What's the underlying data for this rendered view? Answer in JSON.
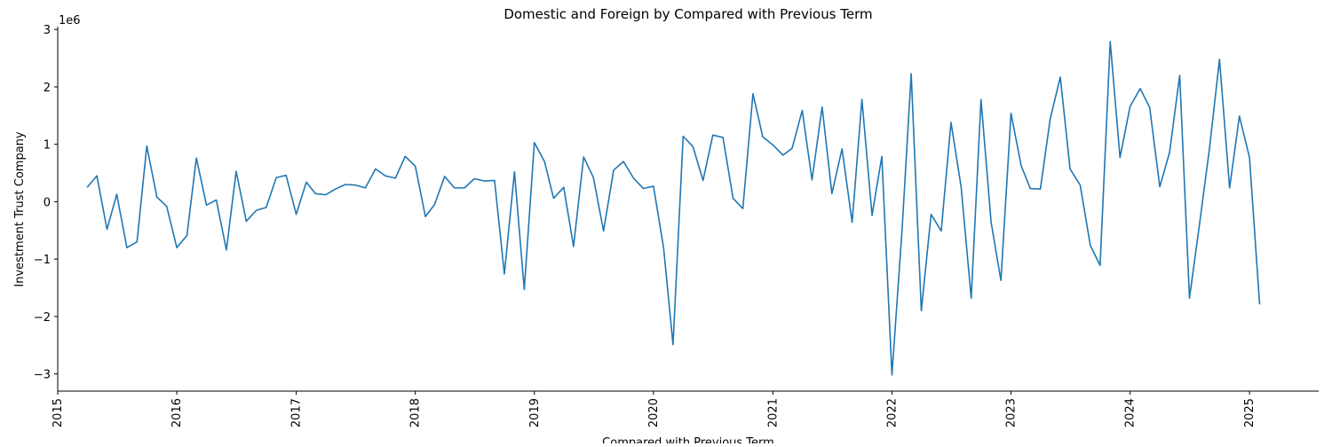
{
  "chart_data": {
    "type": "line",
    "title": "Domestic and Foreign by Compared with Previous Term",
    "xlabel": "Compared with Previous Term",
    "ylabel": "Investment Trust Company",
    "y_multiplier_label": "1e6",
    "y_scale": 1000000,
    "xlim": [
      "2015-01-01",
      "2025-08-01"
    ],
    "ylim": [
      -3300000,
      3050000
    ],
    "x_ticks": [
      "2015-01-01",
      "2016-01-01",
      "2017-01-01",
      "2018-01-01",
      "2019-01-01",
      "2020-01-01",
      "2021-01-01",
      "2022-01-01",
      "2023-01-01",
      "2024-01-01",
      "2025-01-01"
    ],
    "x_tick_labels": [
      "2015",
      "2016",
      "2017",
      "2018",
      "2019",
      "2020",
      "2021",
      "2022",
      "2023",
      "2024",
      "2025"
    ],
    "y_ticks": [
      -3000000,
      -2000000,
      -1000000,
      0,
      1000000,
      2000000,
      3000000
    ],
    "y_tick_labels": [
      "−3",
      "−2",
      "−1",
      "0",
      "1",
      "2",
      "3"
    ],
    "grid": false,
    "line_color": "#1f77b4",
    "series": [
      {
        "x": [
          "2015-04",
          "2015-05",
          "2015-06",
          "2015-07",
          "2015-08",
          "2015-09",
          "2015-10",
          "2015-11",
          "2015-12",
          "2016-01",
          "2016-02",
          "2016-03",
          "2016-04",
          "2016-05",
          "2016-06",
          "2016-07",
          "2016-08",
          "2016-09",
          "2016-10",
          "2016-11",
          "2016-12",
          "2017-01",
          "2017-02",
          "2017-03",
          "2017-04",
          "2017-05",
          "2017-06",
          "2017-07",
          "2017-08",
          "2017-09",
          "2017-10",
          "2017-11",
          "2017-12",
          "2018-01",
          "2018-02",
          "2018-03",
          "2018-04",
          "2018-05",
          "2018-06",
          "2018-07",
          "2018-08",
          "2018-09",
          "2018-10",
          "2018-11",
          "2018-12",
          "2019-01",
          "2019-02",
          "2019-03",
          "2019-04",
          "2019-05",
          "2019-06",
          "2019-07",
          "2019-08",
          "2019-09",
          "2019-10",
          "2019-11",
          "2019-12",
          "2020-01",
          "2020-02",
          "2020-03",
          "2020-04",
          "2020-05",
          "2020-06",
          "2020-07",
          "2020-08",
          "2020-09",
          "2020-10",
          "2020-11",
          "2020-12",
          "2021-01",
          "2021-02",
          "2021-03",
          "2021-04",
          "2021-05",
          "2021-06",
          "2021-07",
          "2021-08",
          "2021-09",
          "2021-10",
          "2021-11",
          "2021-12",
          "2022-01",
          "2022-02",
          "2022-03",
          "2022-04",
          "2022-05",
          "2022-06",
          "2022-07",
          "2022-08",
          "2022-09",
          "2022-10",
          "2022-11",
          "2022-12",
          "2023-01",
          "2023-02",
          "2023-03",
          "2023-04",
          "2023-05",
          "2023-06",
          "2023-07",
          "2023-08",
          "2023-09",
          "2023-10",
          "2023-11",
          "2023-12",
          "2024-01",
          "2024-02",
          "2024-03",
          "2024-04",
          "2024-05",
          "2024-06",
          "2024-07",
          "2024-08",
          "2024-09",
          "2024-10",
          "2024-11",
          "2024-12",
          "2025-01",
          "2025-02"
        ],
        "values": [
          250000,
          450000,
          -480000,
          130000,
          -800000,
          -700000,
          970000,
          80000,
          -80000,
          -800000,
          -590000,
          760000,
          -60000,
          30000,
          -840000,
          530000,
          -340000,
          -150000,
          -100000,
          420000,
          460000,
          -220000,
          340000,
          140000,
          120000,
          220000,
          300000,
          290000,
          240000,
          570000,
          450000,
          410000,
          790000,
          620000,
          -260000,
          -50000,
          440000,
          240000,
          240000,
          400000,
          360000,
          370000,
          -1260000,
          520000,
          -1530000,
          1030000,
          700000,
          60000,
          250000,
          -780000,
          780000,
          420000,
          -510000,
          550000,
          700000,
          410000,
          230000,
          270000,
          -800000,
          -2490000,
          1140000,
          960000,
          370000,
          1160000,
          1120000,
          60000,
          -120000,
          1880000,
          1130000,
          990000,
          810000,
          930000,
          1590000,
          380000,
          1650000,
          140000,
          920000,
          -360000,
          1780000,
          -240000,
          790000,
          -3020000,
          -490000,
          2230000,
          -1900000,
          -220000,
          -510000,
          1380000,
          260000,
          -1680000,
          1780000,
          -360000,
          -1370000,
          1540000,
          630000,
          230000,
          220000,
          1440000,
          2170000,
          570000,
          290000,
          -760000,
          -1110000,
          2790000,
          770000,
          1660000,
          1970000,
          1640000,
          260000,
          860000,
          2200000,
          -1680000,
          -380000,
          960000,
          2480000,
          240000,
          1490000,
          770000,
          -1790000
        ]
      }
    ]
  }
}
